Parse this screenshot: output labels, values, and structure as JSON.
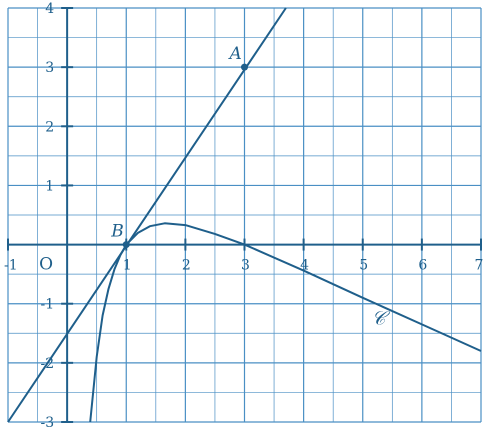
{
  "chart_data": {
    "type": "line",
    "title": "",
    "xlabel": "",
    "ylabel": "",
    "xlim": [
      -1,
      7
    ],
    "ylim": [
      -3,
      4
    ],
    "grid": true,
    "x_ticks": [
      "-1",
      "1",
      "2",
      "3",
      "4",
      "5",
      "6",
      "7"
    ],
    "y_ticks": [
      "-3",
      "-2",
      "-1",
      "1",
      "2",
      "3",
      "4"
    ],
    "origin_label": "O",
    "series": [
      {
        "name": "",
        "kind": "line",
        "x": [
          -1,
          3.7
        ],
        "y": [
          -3,
          4
        ]
      },
      {
        "name": "𝒞",
        "kind": "curve",
        "x": [
          0.39,
          0.5,
          0.6,
          0.7,
          0.8,
          0.9,
          1.0,
          1.2,
          1.4,
          1.65,
          2.0,
          2.5,
          3.0,
          4.0,
          5.0,
          6.0,
          7.0
        ],
        "y": [
          -3.0,
          -1.9,
          -1.2,
          -0.75,
          -0.42,
          -0.18,
          0.0,
          0.2,
          0.31,
          0.36,
          0.33,
          0.18,
          0.0,
          -0.44,
          -0.9,
          -1.35,
          -1.8
        ]
      }
    ],
    "points": [
      {
        "label": "A",
        "x": 3,
        "y": 3
      },
      {
        "label": "B",
        "x": 1,
        "y": 0
      }
    ],
    "colors": {
      "ink": "#1f5f8b",
      "grid": "#4a8fc4"
    }
  }
}
